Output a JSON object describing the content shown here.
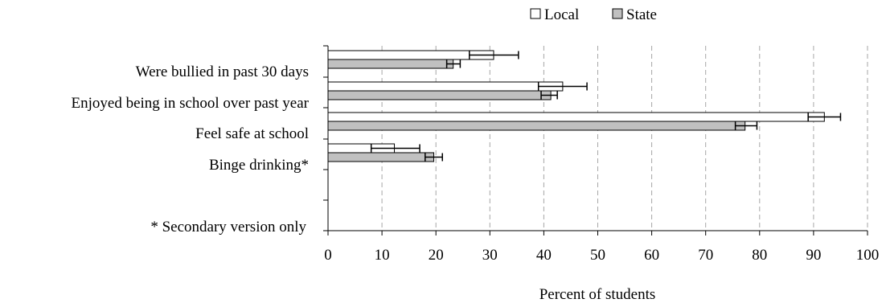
{
  "chart_data": {
    "type": "bar",
    "orientation": "horizontal",
    "categories": [
      "Were bullied in past 30 days",
      "Enjoyed being in school over past year",
      "Feel safe at school",
      "Binge drinking*"
    ],
    "series": [
      {
        "name": "Local",
        "color": "#ffffff",
        "values": [
          30.7,
          43.5,
          92.0,
          12.3
        ],
        "err_low": [
          26.2,
          39.0,
          89.0,
          8.0
        ],
        "err_high": [
          35.3,
          48.0,
          95.0,
          17.0
        ]
      },
      {
        "name": "State",
        "color": "#c0c0c0",
        "values": [
          23.2,
          41.3,
          77.3,
          19.6
        ],
        "err_low": [
          22.0,
          39.5,
          75.5,
          18.0
        ],
        "err_high": [
          24.5,
          42.5,
          79.5,
          21.2
        ]
      }
    ],
    "footnote": "* Secondary version only",
    "xlabel": "Percent of students",
    "xlim": [
      0,
      100
    ],
    "xticks": [
      0,
      10,
      20,
      30,
      40,
      50,
      60,
      70,
      80,
      90,
      100
    ],
    "grid": "vertical dashed",
    "legend_position": "top-right"
  }
}
